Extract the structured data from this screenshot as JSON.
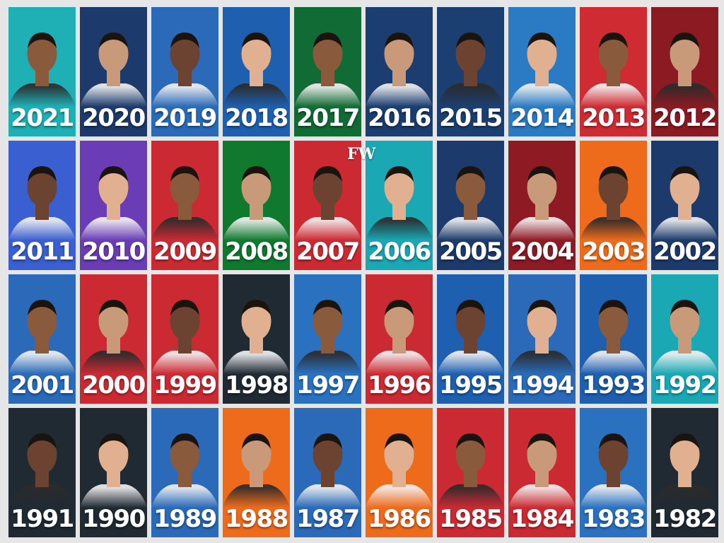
{
  "logo": "FW",
  "tiles": [
    {
      "year": "2021",
      "color": "#1fb0b5"
    },
    {
      "year": "2020",
      "color": "#1c3a6b"
    },
    {
      "year": "2019",
      "color": "#2a6ab8"
    },
    {
      "year": "2018",
      "color": "#1e5fb0"
    },
    {
      "year": "2017",
      "color": "#116b35"
    },
    {
      "year": "2016",
      "color": "#1b3d70"
    },
    {
      "year": "2015",
      "color": "#1c3f72"
    },
    {
      "year": "2014",
      "color": "#2b7bc4"
    },
    {
      "year": "2013",
      "color": "#cf2b33"
    },
    {
      "year": "2012",
      "color": "#8b1a22"
    },
    {
      "year": "2011",
      "color": "#3a5fd0"
    },
    {
      "year": "2010",
      "color": "#6a3cb5"
    },
    {
      "year": "2009",
      "color": "#cc2a32"
    },
    {
      "year": "2008",
      "color": "#0f7a2e"
    },
    {
      "year": "2007",
      "color": "#cc2a32"
    },
    {
      "year": "2006",
      "color": "#1aa8b5"
    },
    {
      "year": "2005",
      "color": "#1c3a6b"
    },
    {
      "year": "2004",
      "color": "#8e1a24"
    },
    {
      "year": "2003",
      "color": "#ef6b1c"
    },
    {
      "year": "2002",
      "color": "#1c3a6b"
    },
    {
      "year": "2001",
      "color": "#2a6ab8"
    },
    {
      "year": "2000",
      "color": "#cc2a32"
    },
    {
      "year": "1999",
      "color": "#cc2a32"
    },
    {
      "year": "1998",
      "color": "#1f2a33"
    },
    {
      "year": "1997",
      "color": "#2a72c0"
    },
    {
      "year": "1996",
      "color": "#cc2a32"
    },
    {
      "year": "1995",
      "color": "#1e5fb0"
    },
    {
      "year": "1994",
      "color": "#2a6ab8"
    },
    {
      "year": "1993",
      "color": "#1e5fb0"
    },
    {
      "year": "1992",
      "color": "#1aa8b5"
    },
    {
      "year": "1991",
      "color": "#1f2a33"
    },
    {
      "year": "1990",
      "color": "#1f2a33"
    },
    {
      "year": "1989",
      "color": "#2a6ab8"
    },
    {
      "year": "1988",
      "color": "#ef6b1c"
    },
    {
      "year": "1987",
      "color": "#2a6ab8"
    },
    {
      "year": "1986",
      "color": "#ef6b1c"
    },
    {
      "year": "1985",
      "color": "#cc2a32"
    },
    {
      "year": "1984",
      "color": "#cc2a32"
    },
    {
      "year": "1983",
      "color": "#2a72c0"
    },
    {
      "year": "1982",
      "color": "#1f2a33"
    }
  ]
}
